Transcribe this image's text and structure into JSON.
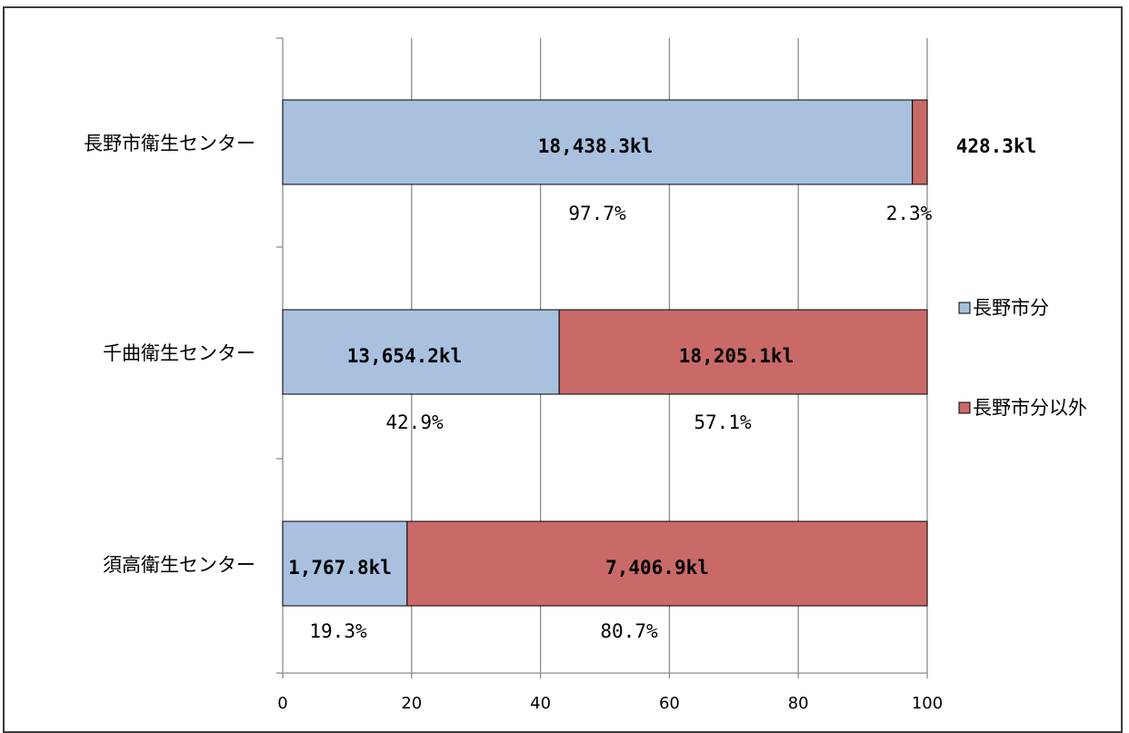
{
  "chart_data": {
    "type": "bar",
    "orientation": "horizontal",
    "stacked": true,
    "categories": [
      "長野市衛生センター",
      "千曲衛生センター",
      "須高衛生センター"
    ],
    "series": [
      {
        "name": "長野市分",
        "color": "#a9c0df",
        "values": [
          97.7,
          42.9,
          19.3
        ],
        "value_labels": [
          "18,438.3kl",
          "13,654.2kl",
          "1,767.8kl"
        ],
        "percent_labels": [
          "97.7%",
          "42.9%",
          "19.3%"
        ]
      },
      {
        "name": "長野市分以外",
        "color": "#c96a68",
        "values": [
          2.3,
          57.1,
          80.7
        ],
        "value_labels": [
          "428.3kl",
          "18,205.1kl",
          "7,406.9kl"
        ],
        "percent_labels": [
          "2.3%",
          "57.1%",
          "80.7%"
        ]
      }
    ],
    "x_ticks": [
      "0",
      "20",
      "40",
      "60",
      "80",
      "100"
    ],
    "xlim": [
      0,
      100
    ],
    "grid": "vertical",
    "legend_position": "right"
  }
}
